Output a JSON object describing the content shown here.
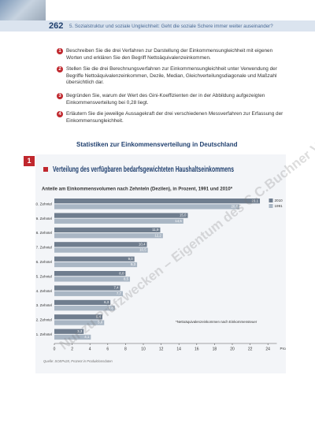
{
  "header": {
    "page_number": "262",
    "chapter": "5. Sozialstruktur und soziale Ungleichheit: Geht die soziale Schere immer weiter auseinander?"
  },
  "tasks": [
    {
      "number": "1",
      "text": "Beschreiben Sie die drei Verfahren zur Darstellung der Einkommensungleichheit mit eigenen Worten und erklären Sie den Begriff Nettoäquivalenzeinkommen."
    },
    {
      "number": "2",
      "text": "Stellen Sie die drei Berechnungsverfahren zur Einkommensungleichheit unter Verwendung der Begriffe Nettoäquivalenzeinkommen, Dezile, Median, Gleichverteilungsdiagonale und Maßzahl übersichtlich dar."
    },
    {
      "number": "3",
      "text": "Begründen Sie, warum der Wert des Gini-Koeffizienten der in der Abbildung aufgezeigten Einkommensverteilung bei 0,28 liegt."
    },
    {
      "number": "4",
      "text": "Erläutern Sie die jeweilige Aussagekraft der drei verschiedenen Messverfahren zur Erfassung der Einkommensungleichheit."
    }
  ],
  "section_heading": "Statistiken zur Einkommensverteilung in Deutschland",
  "watermark": "Nur zu Prüfzwecken – Eigentum des C.C.Buchner Verlags",
  "chart_data": {
    "type": "bar",
    "horizontal": true,
    "grid": false,
    "figure_number": "1",
    "title": "Verteilung des verfügbaren bedarfsgewichteten Haushaltseinkommens",
    "subtitle": "Anteile am Einkommensvolumen nach Zehnteln (Dezilen), in Prozent, 1991 und 2010*",
    "categories": [
      "10. Zehntel",
      "9. Zehntel",
      "8. Zehntel",
      "7. Zehntel",
      "6. Zehntel",
      "5. Zehntel",
      "4. Zehntel",
      "3. Zehntel",
      "2. Zehntel",
      "1. Zehntel"
    ],
    "series": [
      {
        "name": "2010",
        "color": "#6f7d8e",
        "values": [
          23.1,
          15.0,
          11.9,
          10.4,
          9.0,
          8.0,
          7.4,
          6.3,
          5.4,
          3.3
        ],
        "value_labels": [
          "23,1",
          "15,0",
          "11,9",
          "10,4",
          "9,0",
          "8,0",
          "7,4",
          "6,3",
          "5,4",
          "3,3"
        ]
      },
      {
        "name": "1991",
        "color": "#a9b6c4",
        "values": [
          20.8,
          14.5,
          12.2,
          10.5,
          9.3,
          8.5,
          7.7,
          6.8,
          5.6,
          4.1
        ],
        "value_labels": [
          "20,8",
          "14,5",
          "12,2",
          "10,5",
          "9,3",
          "8,5",
          "7,7",
          "6,8",
          "5,6",
          "4,1"
        ]
      }
    ],
    "xlim": [
      0,
      25
    ],
    "xticks": [
      0,
      2,
      4,
      6,
      8,
      10,
      12,
      14,
      16,
      18,
      20,
      22,
      24
    ],
    "xlabel": "Prozent",
    "footnote": "*Nettoäquivalenzeinkommen nach Einkommensteuer",
    "source": "Quelle: SOEPv28, Prozent in Produktionsdaten"
  }
}
